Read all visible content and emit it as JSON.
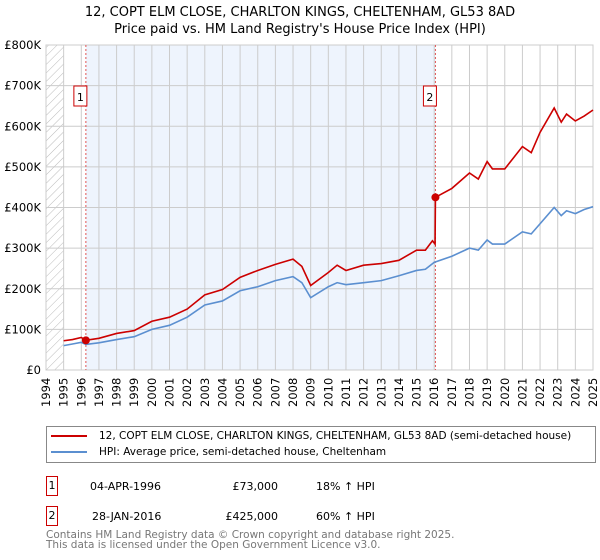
{
  "title": "12, COPT ELM CLOSE, CHARLTON KINGS, CHELTENHAM, GL53 8AD",
  "subtitle": "Price paid vs. HM Land Registry's House Price Index (HPI)",
  "colors": {
    "property": "#cc0000",
    "hpi": "#5b8fd0",
    "shade": "#eef4fd"
  },
  "chart_data": {
    "type": "line",
    "ylim": [
      0,
      800000
    ],
    "xlim": [
      1994,
      2025
    ],
    "yticks": [
      {
        "v": 0,
        "label": "£0"
      },
      {
        "v": 100000,
        "label": "£100K"
      },
      {
        "v": 200000,
        "label": "£200K"
      },
      {
        "v": 300000,
        "label": "£300K"
      },
      {
        "v": 400000,
        "label": "£400K"
      },
      {
        "v": 500000,
        "label": "£500K"
      },
      {
        "v": 600000,
        "label": "£600K"
      },
      {
        "v": 700000,
        "label": "£700K"
      },
      {
        "v": 800000,
        "label": "£800K"
      }
    ],
    "xticks": [
      "1994",
      "1995",
      "1996",
      "1997",
      "1998",
      "1999",
      "2000",
      "2001",
      "2002",
      "2003",
      "2004",
      "2005",
      "2006",
      "2007",
      "2008",
      "2009",
      "2010",
      "2011",
      "2012",
      "2013",
      "2014",
      "2015",
      "2016",
      "2017",
      "2018",
      "2019",
      "2020",
      "2021",
      "2022",
      "2023",
      "2024",
      "2025"
    ],
    "series": [
      {
        "name": "12, COPT ELM CLOSE, CHARLTON KINGS, CHELTENHAM, GL53 8AD (semi-detached house)",
        "x": [
          1995,
          1995.5,
          1996,
          1996.26,
          1997,
          1998,
          1999,
          2000,
          2001,
          2002,
          2003,
          2004,
          2005,
          2006,
          2007,
          2008,
          2008.5,
          2009,
          2010,
          2010.5,
          2011,
          2012,
          2013,
          2014,
          2015,
          2015.5,
          2015.9,
          2016.05,
          2016.07,
          2017,
          2018,
          2018.5,
          2019,
          2019.3,
          2020,
          2021,
          2021.5,
          2022,
          2022.8,
          2023.2,
          2023.5,
          2024,
          2024.5,
          2025
        ],
        "y": [
          72000,
          75000,
          80000,
          73000,
          78000,
          90000,
          97000,
          120000,
          130000,
          150000,
          185000,
          198000,
          228000,
          245000,
          260000,
          273000,
          255000,
          208000,
          240000,
          258000,
          245000,
          258000,
          262000,
          270000,
          295000,
          295000,
          318000,
          310000,
          425000,
          447000,
          485000,
          470000,
          513000,
          495000,
          495000,
          550000,
          535000,
          585000,
          645000,
          610000,
          630000,
          613000,
          625000,
          640000
        ]
      },
      {
        "name": "HPI: Average price, semi-detached house, Cheltenham",
        "x": [
          1995,
          1995.5,
          1996,
          1996.26,
          1997,
          1998,
          1999,
          2000,
          2001,
          2002,
          2003,
          2004,
          2005,
          2006,
          2007,
          2008,
          2008.5,
          2009,
          2010,
          2010.5,
          2011,
          2012,
          2013,
          2014,
          2015,
          2015.5,
          2016,
          2017,
          2018,
          2018.5,
          2019,
          2019.3,
          2020,
          2021,
          2021.5,
          2022,
          2022.8,
          2023.2,
          2023.5,
          2024,
          2024.5,
          2025
        ],
        "y": [
          60000,
          64000,
          68000,
          63000,
          67000,
          75000,
          82000,
          100000,
          110000,
          130000,
          160000,
          170000,
          195000,
          205000,
          220000,
          230000,
          215000,
          178000,
          205000,
          215000,
          210000,
          215000,
          220000,
          232000,
          245000,
          248000,
          265000,
          280000,
          300000,
          295000,
          320000,
          310000,
          310000,
          340000,
          335000,
          360000,
          400000,
          380000,
          392000,
          385000,
          395000,
          402000
        ]
      }
    ],
    "annotations": [
      {
        "label": "1",
        "x": 1996.26,
        "y": 73000
      },
      {
        "label": "2",
        "x": 2016.07,
        "y": 425000
      }
    ]
  },
  "legend": [
    "12, COPT ELM CLOSE, CHARLTON KINGS, CHELTENHAM, GL53 8AD (semi-detached house)",
    "HPI: Average price, semi-detached house, Cheltenham"
  ],
  "transactions": [
    {
      "num": "1",
      "date": "04-APR-1996",
      "price": "£73,000",
      "hpi": "18% ↑ HPI"
    },
    {
      "num": "2",
      "date": "28-JAN-2016",
      "price": "£425,000",
      "hpi": "60% ↑ HPI"
    }
  ],
  "footer": [
    "Contains HM Land Registry data © Crown copyright and database right 2025.",
    "This data is licensed under the Open Government Licence v3.0."
  ]
}
